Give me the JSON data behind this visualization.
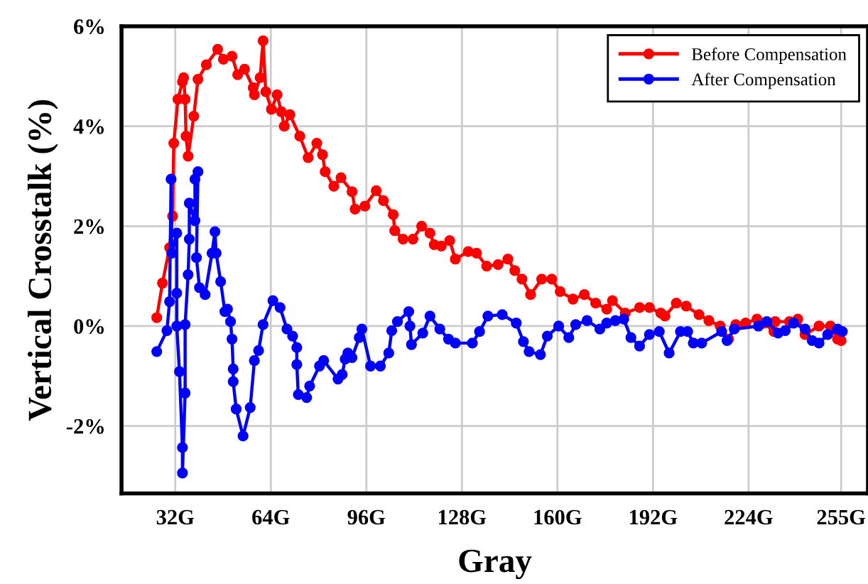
{
  "chart_data": {
    "type": "line",
    "xlabel": "Gray",
    "ylabel": "Vertical Crosstalk (%)",
    "xlim": [
      14,
      264
    ],
    "ylim": [
      -3.35,
      6
    ],
    "xticks": [
      {
        "value": 32,
        "label": "32G"
      },
      {
        "value": 64,
        "label": "64G"
      },
      {
        "value": 96,
        "label": "96G"
      },
      {
        "value": 128,
        "label": "128G"
      },
      {
        "value": 160,
        "label": "160G"
      },
      {
        "value": 192,
        "label": "192G"
      },
      {
        "value": 224,
        "label": "224G"
      },
      {
        "value": 255,
        "label": "255G"
      }
    ],
    "yticks": [
      {
        "value": -2,
        "label": "-2%"
      },
      {
        "value": 0,
        "label": "0%"
      },
      {
        "value": 2,
        "label": "2%"
      },
      {
        "value": 4,
        "label": "4%"
      },
      {
        "value": 6,
        "label": "6%"
      }
    ],
    "grid": true,
    "legend": "top right",
    "marker": "circle",
    "line_style": "solid",
    "series": [
      {
        "name": "Before Compensation",
        "color": "#ff0000",
        "x": [
          25.8,
          27.7,
          30.1,
          31.1,
          31.5,
          32.9,
          34.4,
          34.8,
          35.3,
          35.6,
          36.3,
          38.2,
          39.6,
          42.4,
          46.2,
          48.1,
          51.0,
          52.9,
          55.2,
          58.1,
          58.5,
          60.4,
          61.4,
          62.3,
          64.2,
          66.1,
          67.5,
          68.5,
          70.4,
          73.7,
          76.5,
          79.4,
          81.3,
          82.2,
          85.1,
          87.5,
          91.2,
          92.2,
          95.5,
          99.3,
          101.7,
          105.0,
          105.5,
          108.3,
          111.6,
          114.5,
          117.3,
          118.7,
          121.1,
          123.9,
          125.8,
          130.1,
          132.9,
          136.3,
          140.1,
          143.4,
          145.7,
          148.1,
          151.0,
          154.7,
          158.1,
          160.9,
          165.2,
          169.0,
          172.8,
          176.5,
          178.4,
          182.7,
          187.5,
          190.8,
          194.6,
          196.0,
          199.8,
          203.1,
          207.4,
          210.7,
          214.5,
          217.3,
          219.7,
          223.0,
          226.8,
          229.2,
          232.5,
          232.9,
          237.7,
          240.5,
          242.9,
          247.6,
          251.4,
          253.8,
          255.0
        ],
        "values": [
          0.17,
          0.86,
          1.57,
          2.2,
          3.66,
          4.54,
          4.89,
          4.97,
          4.54,
          3.8,
          3.4,
          4.2,
          4.94,
          5.23,
          5.54,
          5.34,
          5.4,
          5.03,
          5.14,
          4.77,
          4.63,
          4.97,
          5.71,
          4.69,
          4.34,
          4.63,
          4.29,
          4.0,
          4.23,
          3.8,
          3.37,
          3.66,
          3.43,
          3.09,
          2.8,
          2.97,
          2.69,
          2.34,
          2.4,
          2.71,
          2.51,
          2.23,
          1.91,
          1.74,
          1.74,
          2.0,
          1.86,
          1.63,
          1.6,
          1.71,
          1.34,
          1.49,
          1.46,
          1.2,
          1.23,
          1.34,
          1.11,
          0.94,
          0.63,
          0.94,
          0.94,
          0.69,
          0.54,
          0.63,
          0.46,
          0.34,
          0.51,
          0.26,
          0.37,
          0.37,
          0.26,
          0.2,
          0.46,
          0.4,
          0.23,
          0.11,
          0.0,
          -0.26,
          0.03,
          0.06,
          0.14,
          0.06,
          -0.11,
          0.09,
          0.09,
          0.14,
          -0.17,
          0.0,
          0.0,
          -0.26,
          -0.29
        ]
      },
      {
        "name": "After Compensation",
        "color": "#0000ff",
        "x": [
          25.8,
          29.2,
          30.1,
          30.6,
          30.8,
          32.5,
          32.5,
          32.5,
          33.4,
          34.4,
          34.4,
          35.3,
          35.3,
          36.3,
          36.7,
          36.7,
          38.6,
          38.6,
          39.6,
          39.1,
          40.1,
          42.0,
          44.3,
          45.3,
          45.7,
          47.2,
          48.6,
          49.5,
          50.5,
          51.0,
          51.4,
          51.4,
          52.4,
          54.7,
          57.1,
          58.5,
          59.9,
          61.4,
          64.7,
          67.1,
          69.4,
          71.3,
          72.7,
          72.7,
          73.2,
          76.0,
          77.0,
          80.3,
          81.7,
          86.5,
          87.9,
          88.9,
          89.8,
          91.2,
          93.6,
          94.5,
          97.4,
          100.7,
          103.5,
          104.5,
          106.4,
          110.2,
          110.6,
          111.1,
          114.9,
          117.3,
          120.6,
          123.5,
          125.8,
          131.5,
          133.9,
          136.7,
          141.5,
          146.2,
          148.6,
          150.5,
          154.3,
          156.6,
          160.4,
          163.8,
          166.1,
          169.9,
          174.2,
          176.5,
          179.4,
          182.2,
          184.6,
          187.5,
          190.8,
          194.1,
          197.4,
          201.2,
          203.6,
          205.5,
          208.3,
          215.0,
          216.8,
          219.2,
          227.3,
          230.1,
          233.9,
          236.3,
          239.1,
          242.9,
          245.3,
          247.6,
          250.5,
          253.8,
          255.4
        ],
        "values": [
          -0.51,
          -0.09,
          0.49,
          2.94,
          1.46,
          1.86,
          0.66,
          0.0,
          -0.91,
          -2.43,
          -2.94,
          -1.34,
          0.03,
          1.03,
          1.74,
          2.46,
          2.11,
          2.94,
          3.09,
          1.37,
          0.77,
          0.63,
          1.46,
          1.89,
          1.46,
          0.89,
          0.29,
          0.34,
          0.09,
          -0.26,
          -0.86,
          -1.11,
          -1.66,
          -2.2,
          -1.63,
          -0.69,
          -0.49,
          0.03,
          0.51,
          0.37,
          -0.06,
          -0.2,
          -0.43,
          -0.77,
          -1.37,
          -1.43,
          -1.2,
          -0.8,
          -0.69,
          -1.06,
          -0.97,
          -0.66,
          -0.54,
          -0.63,
          -0.23,
          -0.06,
          -0.8,
          -0.8,
          -0.54,
          -0.09,
          0.09,
          0.29,
          0.0,
          -0.37,
          -0.14,
          0.2,
          -0.06,
          -0.26,
          -0.34,
          -0.34,
          -0.11,
          0.2,
          0.23,
          0.06,
          -0.31,
          -0.51,
          -0.57,
          -0.2,
          0.0,
          -0.23,
          0.03,
          0.11,
          -0.06,
          0.06,
          0.11,
          0.14,
          -0.23,
          -0.4,
          -0.17,
          -0.11,
          -0.54,
          -0.11,
          -0.11,
          -0.34,
          -0.34,
          -0.11,
          -0.29,
          -0.06,
          0.0,
          0.09,
          -0.14,
          -0.09,
          0.06,
          -0.06,
          -0.29,
          -0.34,
          -0.17,
          -0.06,
          -0.11
        ]
      }
    ]
  }
}
